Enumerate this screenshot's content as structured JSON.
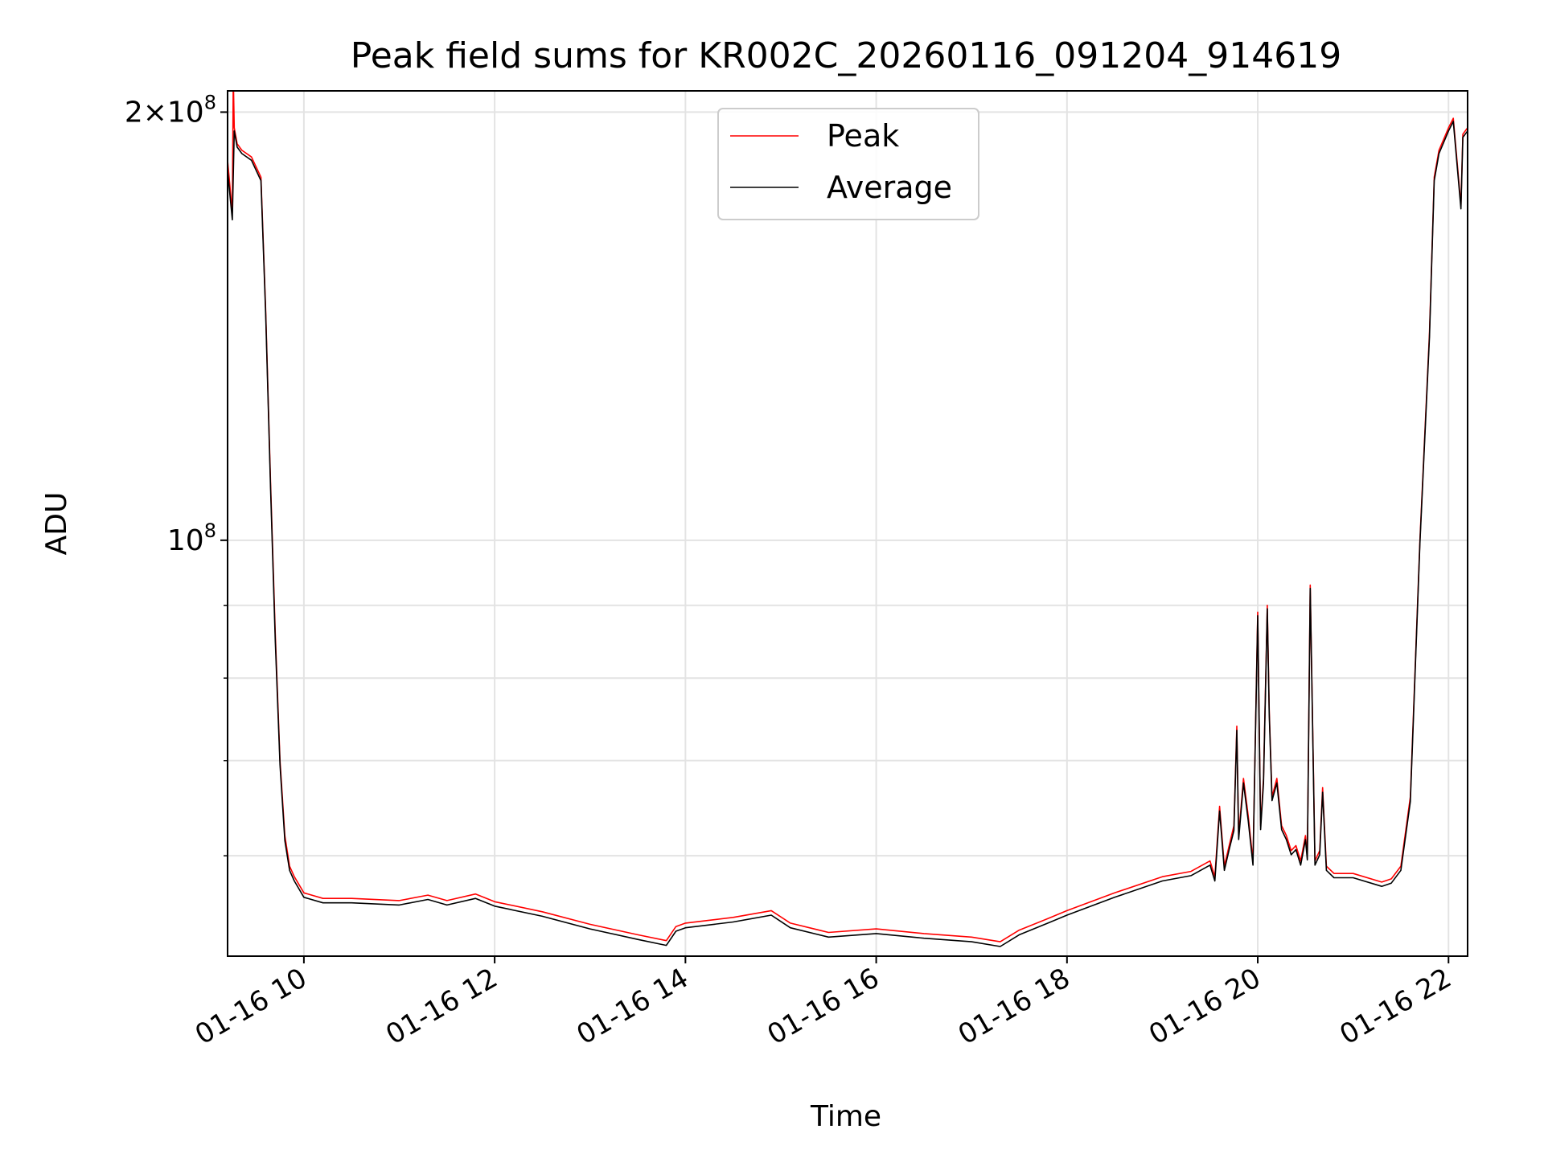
{
  "chart_data": {
    "type": "line",
    "title": "Peak field sums for KR002C_20260116_091204_914619",
    "xlabel": "Time",
    "ylabel": "ADU",
    "yscale": "log",
    "ylim": [
      51000000,
      207000000
    ],
    "xlim_hours": [
      9.2,
      22.2
    ],
    "grid": true,
    "legend_position": "upper center",
    "x_ticks": [
      {
        "hour": 10,
        "label": "01-16 10"
      },
      {
        "hour": 12,
        "label": "01-16 12"
      },
      {
        "hour": 14,
        "label": "01-16 14"
      },
      {
        "hour": 16,
        "label": "01-16 16"
      },
      {
        "hour": 18,
        "label": "01-16 18"
      },
      {
        "hour": 20,
        "label": "01-16 20"
      },
      {
        "hour": 22,
        "label": "01-16 22"
      }
    ],
    "y_major_ticks": [
      {
        "value": 100000000,
        "base": "10",
        "exp": "8"
      },
      {
        "value": 200000000,
        "mant": "2",
        "base": "10",
        "exp": "8"
      }
    ],
    "y_minor_ticks": [
      60000000,
      70000000,
      80000000,
      90000000
    ],
    "series": [
      {
        "name": "Peak",
        "color": "#ff0000",
        "x_hours": [
          9.2,
          9.25,
          9.26,
          9.27,
          9.3,
          9.35,
          9.45,
          9.55,
          9.6,
          9.65,
          9.7,
          9.75,
          9.8,
          9.85,
          9.9,
          10.0,
          10.2,
          10.5,
          11.0,
          11.3,
          11.5,
          11.8,
          12.0,
          12.5,
          13.0,
          13.5,
          13.8,
          13.9,
          14.0,
          14.5,
          14.9,
          15.1,
          15.5,
          16.0,
          16.5,
          17.0,
          17.3,
          17.5,
          17.8,
          18.0,
          18.5,
          19.0,
          19.3,
          19.5,
          19.55,
          19.6,
          19.65,
          19.7,
          19.75,
          19.78,
          19.8,
          19.85,
          19.9,
          19.95,
          20.0,
          20.03,
          20.06,
          20.1,
          20.12,
          20.15,
          20.2,
          20.25,
          20.3,
          20.35,
          20.4,
          20.45,
          20.5,
          20.52,
          20.55,
          20.6,
          20.65,
          20.68,
          20.72,
          20.8,
          21.0,
          21.3,
          21.4,
          21.5,
          21.6,
          21.7,
          21.8,
          21.85,
          21.9,
          22.0,
          22.05,
          22.13,
          22.15,
          22.2
        ],
        "y": [
          185000000,
          170000000,
          212000000,
          195000000,
          190000000,
          188000000,
          186000000,
          180000000,
          145000000,
          110000000,
          86000000,
          70000000,
          62000000,
          59000000,
          58000000,
          56500000,
          56000000,
          56000000,
          55800000,
          56300000,
          55800000,
          56400000,
          55700000,
          54800000,
          53700000,
          52800000,
          52300000,
          53500000,
          53800000,
          54300000,
          54900000,
          53800000,
          53000000,
          53300000,
          52900000,
          52600000,
          52200000,
          53200000,
          54200000,
          54900000,
          56500000,
          58000000,
          58500000,
          59500000,
          58000000,
          65000000,
          59000000,
          61000000,
          63000000,
          74000000,
          62000000,
          68000000,
          64000000,
          59500000,
          89000000,
          63000000,
          68000000,
          90000000,
          76000000,
          66000000,
          68000000,
          63000000,
          62000000,
          60500000,
          61000000,
          59500000,
          62000000,
          60000000,
          93000000,
          59500000,
          60500000,
          67000000,
          59000000,
          58300000,
          58300000,
          57500000,
          57800000,
          59000000,
          66000000,
          100000000,
          140000000,
          180000000,
          188000000,
          195000000,
          198000000,
          172000000,
          193000000,
          195000000
        ]
      },
      {
        "name": "Average",
        "color": "#000000",
        "x_hours": [
          9.2,
          9.25,
          9.27,
          9.3,
          9.35,
          9.45,
          9.55,
          9.6,
          9.65,
          9.7,
          9.75,
          9.8,
          9.85,
          9.9,
          10.0,
          10.2,
          10.5,
          11.0,
          11.3,
          11.5,
          11.8,
          12.0,
          12.5,
          13.0,
          13.5,
          13.8,
          13.9,
          14.0,
          14.5,
          14.9,
          15.1,
          15.5,
          16.0,
          16.5,
          17.0,
          17.3,
          17.5,
          17.8,
          18.0,
          18.5,
          19.0,
          19.3,
          19.5,
          19.55,
          19.6,
          19.65,
          19.7,
          19.75,
          19.78,
          19.8,
          19.85,
          19.9,
          19.95,
          20.0,
          20.03,
          20.06,
          20.1,
          20.12,
          20.15,
          20.2,
          20.25,
          20.3,
          20.35,
          20.4,
          20.45,
          20.5,
          20.52,
          20.55,
          20.6,
          20.65,
          20.68,
          20.72,
          20.8,
          21.0,
          21.3,
          21.4,
          21.5,
          21.6,
          21.7,
          21.8,
          21.85,
          21.9,
          22.0,
          22.05,
          22.13,
          22.15,
          22.2
        ],
        "y": [
          182000000,
          168000000,
          194000000,
          189000000,
          187000000,
          185000000,
          179000000,
          144000000,
          109000000,
          85000000,
          69500000,
          61500000,
          58600000,
          57600000,
          56100000,
          55600000,
          55600000,
          55400000,
          55900000,
          55400000,
          56000000,
          55300000,
          54400000,
          53300000,
          52400000,
          51900000,
          53100000,
          53400000,
          53900000,
          54500000,
          53400000,
          52600000,
          52900000,
          52500000,
          52200000,
          51800000,
          52800000,
          53800000,
          54500000,
          56100000,
          57600000,
          58100000,
          59100000,
          57600000,
          64500000,
          58600000,
          60600000,
          62500000,
          73500000,
          61600000,
          67500000,
          63500000,
          59100000,
          88500000,
          62600000,
          67500000,
          89500000,
          75500000,
          65600000,
          67500000,
          62600000,
          61600000,
          60100000,
          60600000,
          59100000,
          61600000,
          59600000,
          92500000,
          59100000,
          60100000,
          66500000,
          58600000,
          57900000,
          57900000,
          57100000,
          57400000,
          58600000,
          65500000,
          99500000,
          139000000,
          179000000,
          187000000,
          194000000,
          197000000,
          171000000,
          192000000,
          194000000
        ]
      }
    ]
  }
}
